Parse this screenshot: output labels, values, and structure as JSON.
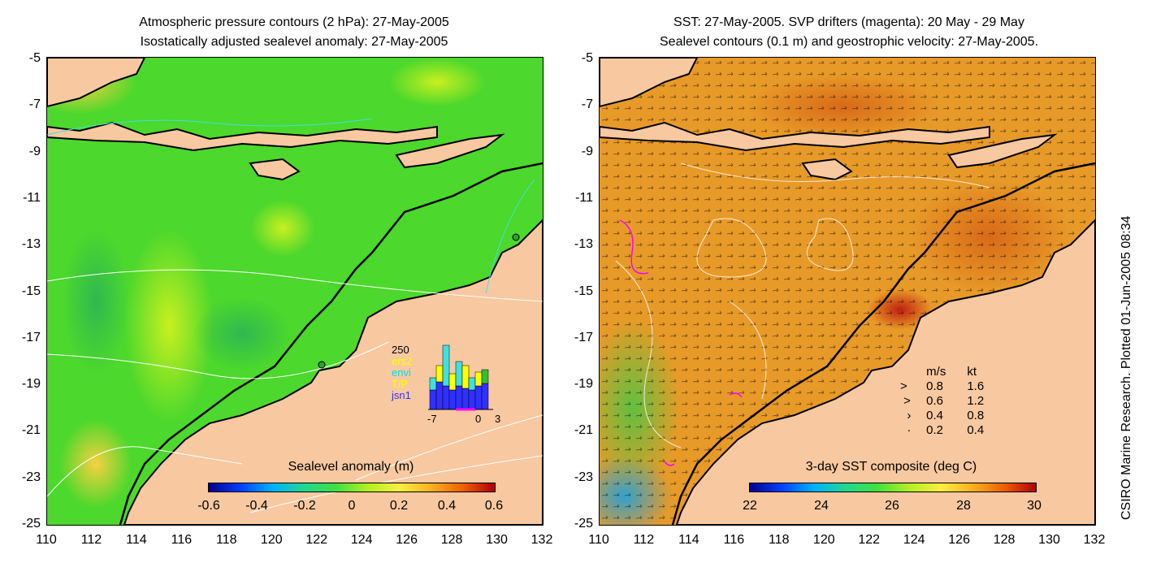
{
  "left_panel": {
    "title_line1": "Atmospheric pressure contours (2 hPa): 27-May-2005",
    "title_line2": "Isostatically adjusted sealevel anomaly: 27-May-2005",
    "colorbar_label": "Sealevel anomaly (m)",
    "colorbar_ticks": [
      "-0.6",
      "-0.4",
      "-0.2",
      "0",
      "0.2",
      "0.4",
      "0.6"
    ],
    "inset": {
      "ymax_label": "250",
      "series_labels": [
        "ers2",
        "envi",
        "T/P",
        "jsn1"
      ],
      "series_colors": [
        "#ffff00",
        "#00e0e0",
        "#ffff00",
        "#3030ff"
      ],
      "x_ticks": [
        "-7",
        "0",
        "3"
      ]
    }
  },
  "right_panel": {
    "title_line1": "SST: 27-May-2005. SVP drifters (magenta): 20 May - 29 May",
    "title_line2": "Sealevel contours (0.1 m) and geostrophic velocity: 27-May-2005.",
    "colorbar_label": "3-day SST composite (deg C)",
    "colorbar_ticks": [
      "22",
      "24",
      "26",
      "28",
      "30"
    ],
    "velocity_legend": {
      "header_ms": "m/s",
      "header_kt": "kt",
      "rows": [
        {
          "ms": "0.8",
          "kt": "1.6"
        },
        {
          "ms": "0.6",
          "kt": "1.2"
        },
        {
          "ms": "0.4",
          "kt": "0.8"
        },
        {
          "ms": "0.2",
          "kt": "0.4"
        }
      ]
    }
  },
  "y_ticks": [
    "-5",
    "-7",
    "-9",
    "-11",
    "-13",
    "-15",
    "-17",
    "-19",
    "-21",
    "-23",
    "-25"
  ],
  "x_ticks": [
    "110",
    "112",
    "114",
    "116",
    "118",
    "120",
    "122",
    "124",
    "126",
    "128",
    "130",
    "132"
  ],
  "credit": "CSIRO Marine Research. Plotted 01-Jun-2005 08:34",
  "colors": {
    "land": "#f8c8a0",
    "ocean_left": "#4cd82c",
    "ocean_right": "#e89a28"
  },
  "chart_data": [
    {
      "type": "heatmap",
      "title": "Isostatically adjusted sealevel anomaly: 27-May-2005",
      "variable": "Sealevel anomaly (m)",
      "x_range": [
        110,
        132
      ],
      "y_range": [
        -25,
        -5
      ],
      "color_range": [
        -0.6,
        0.6
      ],
      "x_ticks": [
        110,
        112,
        114,
        116,
        118,
        120,
        122,
        124,
        126,
        128,
        130,
        132
      ],
      "y_ticks": [
        -5,
        -7,
        -9,
        -11,
        -13,
        -15,
        -17,
        -19,
        -21,
        -23,
        -25
      ]
    },
    {
      "type": "heatmap",
      "title": "SST: 27-May-2005",
      "variable": "3-day SST composite (deg C)",
      "x_range": [
        110,
        132
      ],
      "y_range": [
        -25,
        -5
      ],
      "color_range": [
        22,
        30
      ],
      "velocity_scale_ms": [
        0.8,
        0.6,
        0.4,
        0.2
      ],
      "velocity_scale_kt": [
        1.6,
        1.2,
        0.8,
        0.4
      ]
    }
  ]
}
